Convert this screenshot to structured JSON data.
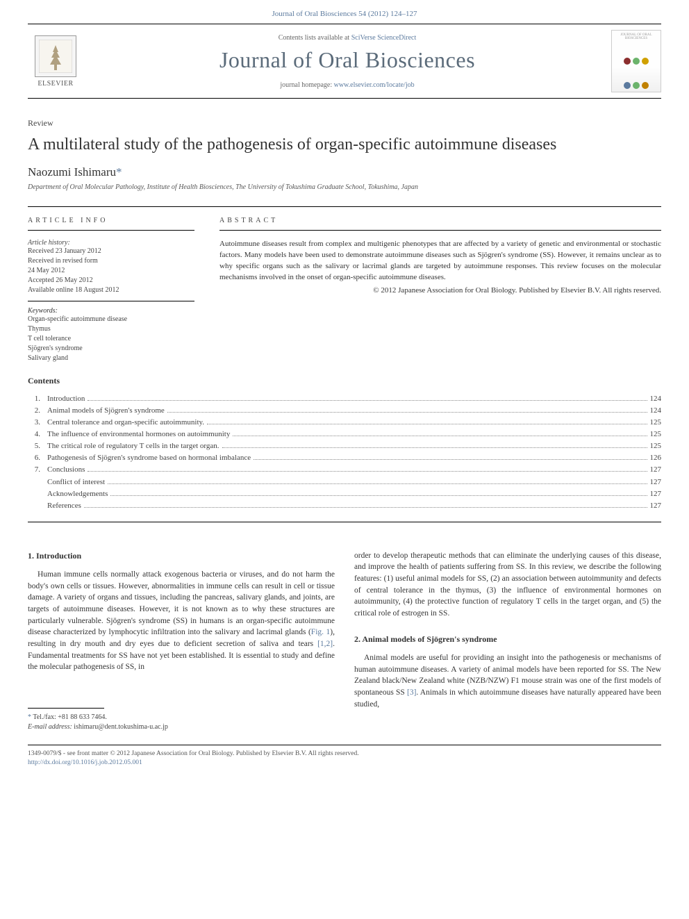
{
  "header": {
    "citation": "Journal of Oral Biosciences 54 (2012) 124–127",
    "contents_available": "Contents lists available at",
    "contents_source": "SciVerse ScienceDirect",
    "journal_title": "Journal of Oral Biosciences",
    "homepage_label": "journal homepage:",
    "homepage_url": "www.elsevier.com/locate/job",
    "publisher_name": "ELSEVIER",
    "cover_caption": "JOURNAL OF ORAL BIOSCIENCES"
  },
  "cover_dot_colors_top": [
    "#8b2e2e",
    "#6bb36b",
    "#d0a000"
  ],
  "cover_dot_colors_bottom": [
    "#5b7a9e",
    "#6bb36b",
    "#c08000"
  ],
  "article": {
    "type": "Review",
    "title": "A multilateral study of the pathogenesis of organ-specific autoimmune diseases",
    "author": "Naozumi Ishimaru",
    "corr_marker": "*",
    "affiliation": "Department of Oral Molecular Pathology, Institute of Health Biosciences, The University of Tokushima Graduate School, Tokushima, Japan"
  },
  "info": {
    "heading": "ARTICLE INFO",
    "history_label": "Article history:",
    "received": "Received 23 January 2012",
    "revised_label": "Received in revised form",
    "revised_date": "24 May 2012",
    "accepted": "Accepted 26 May 2012",
    "online": "Available online 18 August 2012",
    "keywords_label": "Keywords:",
    "keywords": [
      "Organ-specific autoimmune disease",
      "Thymus",
      "T cell tolerance",
      "Sjögren's syndrome",
      "Salivary gland"
    ]
  },
  "abstract": {
    "heading": "ABSTRACT",
    "text": "Autoimmune diseases result from complex and multigenic phenotypes that are affected by a variety of genetic and environmental or stochastic factors. Many models have been used to demonstrate autoimmune diseases such as Sjögren's syndrome (SS). However, it remains unclear as to why specific organs such as the salivary or lacrimal glands are targeted by autoimmune responses. This review focuses on the molecular mechanisms involved in the onset of organ-specific autoimmune diseases.",
    "copyright": "© 2012 Japanese Association for Oral Biology. Published by Elsevier B.V. All rights reserved."
  },
  "contents": {
    "heading": "Contents",
    "items": [
      {
        "num": "1.",
        "title": "Introduction",
        "page": "124"
      },
      {
        "num": "2.",
        "title": "Animal models of Sjögren's syndrome",
        "page": "124"
      },
      {
        "num": "3.",
        "title": "Central tolerance and organ-specific autoimmunity.",
        "page": "125"
      },
      {
        "num": "4.",
        "title": "The influence of environmental hormones on autoimmunity",
        "page": "125"
      },
      {
        "num": "5.",
        "title": "The critical role of regulatory T cells in the target organ.",
        "page": "125"
      },
      {
        "num": "6.",
        "title": "Pathogenesis of Sjögren's syndrome based on hormonal imbalance",
        "page": "126"
      },
      {
        "num": "7.",
        "title": "Conclusions",
        "page": "127"
      }
    ],
    "sub_items": [
      {
        "title": "Conflict of interest",
        "page": "127"
      },
      {
        "title": "Acknowledgements",
        "page": "127"
      },
      {
        "title": "References",
        "page": "127"
      }
    ]
  },
  "body": {
    "section1_heading": "1. Introduction",
    "section1_p1a": "Human immune cells normally attack exogenous bacteria or viruses, and do not harm the body's own cells or tissues. However, abnormalities in immune cells can result in cell or tissue damage. A variety of organs and tissues, including the pancreas, salivary glands, and joints, are targets of autoimmune diseases. However, it is not known as to why these structures are particularly vulnerable. Sjögren's syndrome (SS) in humans is an organ-specific autoimmune disease characterized by lymphocytic infiltration into the salivary and lacrimal glands (",
    "fig1_link": "Fig. 1",
    "section1_p1b": "), resulting in dry mouth and dry eyes due to deficient secretion of saliva and tears ",
    "ref12_link": "[1,2]",
    "section1_p1c": ". Fundamental treatments for SS have not yet been established. It is essential to study and define the molecular pathogenesis of SS, in",
    "section1_p2": "order to develop therapeutic methods that can eliminate the underlying causes of this disease, and improve the health of patients suffering from SS. In this review, we describe the following features: (1) useful animal models for SS, (2) an association between autoimmunity and defects of central tolerance in the thymus, (3) the influence of environmental hormones on autoimmunity, (4) the protective function of regulatory T cells in the target organ, and (5) the critical role of estrogen in SS.",
    "section2_heading": "2. Animal models of Sjögren's syndrome",
    "section2_p1a": "Animal models are useful for providing an insight into the pathogenesis or mechanisms of human autoimmune diseases. A variety of animal models have been reported for SS. The New Zealand black/New Zealand white (NZB/NZW) F1 mouse strain was one of the first models of spontaneous SS ",
    "ref3_link": "[3]",
    "section2_p1b": ". Animals in which autoimmune diseases have naturally appeared have been studied,"
  },
  "footnote": {
    "corr_marker": "*",
    "tel_label": "Tel./fax:",
    "tel": "+81 88 633 7464.",
    "email_label": "E-mail address:",
    "email": "ishimaru@dent.tokushima-u.ac.jp"
  },
  "footer": {
    "line1": "1349-0079/$ - see front matter © 2012 Japanese Association for Oral Biology. Published by Elsevier B.V. All rights reserved.",
    "doi_url": "http://dx.doi.org/10.1016/j.job.2012.05.001"
  },
  "colors": {
    "link": "#5b7a9e",
    "text": "#333333",
    "muted": "#555555",
    "rule": "#000000"
  }
}
